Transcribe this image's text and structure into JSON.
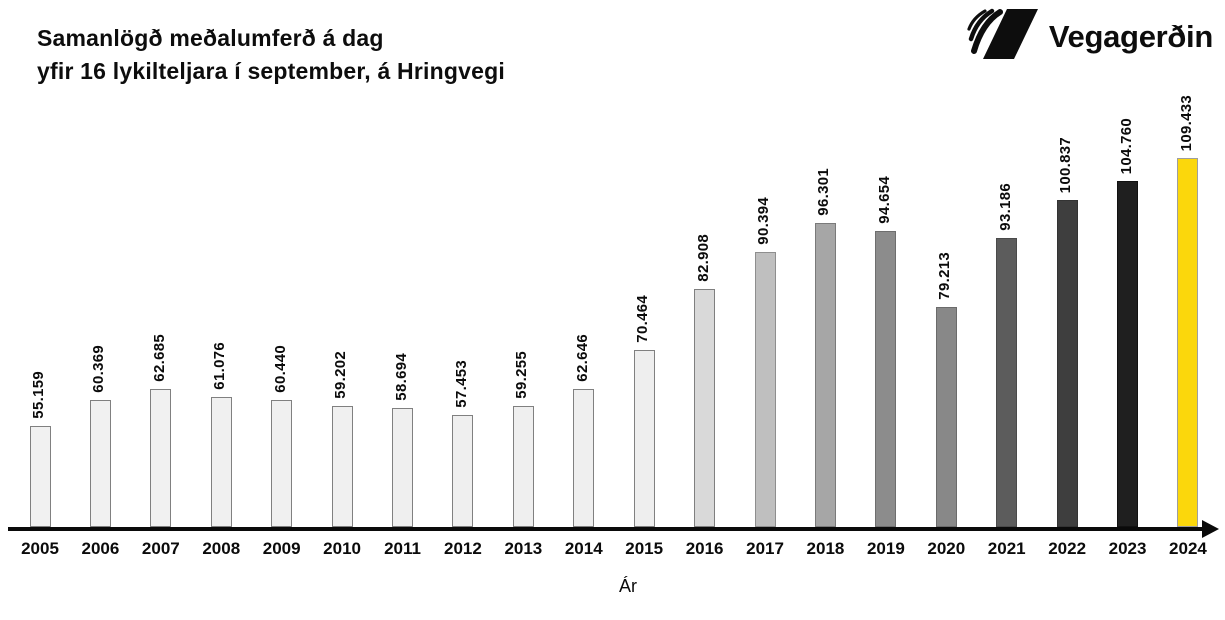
{
  "title": {
    "line1": "Samanlögð meðalumferð á dag",
    "line2": "yfir 16 lykilteljara í september, á Hringvegi"
  },
  "logo": {
    "wordmark": "Vegagerðin",
    "icon": "vegagerdin-logo-icon",
    "color": "#0d0d0d"
  },
  "xaxis_title": "Ár",
  "chart_data": {
    "type": "bar",
    "title": "Samanlögð meðalumferð á dag yfir 16 lykilteljara í september, á Hringvegi",
    "xlabel": "Ár",
    "ylabel": "",
    "ylim": [
      34700,
      110000
    ],
    "y_axis_visible": false,
    "grid": false,
    "legend": false,
    "categories": [
      "2005",
      "2006",
      "2007",
      "2008",
      "2009",
      "2010",
      "2011",
      "2012",
      "2013",
      "2014",
      "2015",
      "2016",
      "2017",
      "2018",
      "2019",
      "2020",
      "2021",
      "2022",
      "2023",
      "2024"
    ],
    "values": [
      55159,
      60369,
      62685,
      61076,
      60440,
      59202,
      58694,
      57453,
      59255,
      62646,
      70464,
      82908,
      90394,
      96301,
      94654,
      79213,
      93186,
      100837,
      104760,
      109433
    ],
    "value_labels": [
      "55.159",
      "60.369",
      "62.685",
      "61.076",
      "60.440",
      "59.202",
      "58.694",
      "57.453",
      "59.255",
      "62.646",
      "70.464",
      "82.908",
      "90.394",
      "96.301",
      "94.654",
      "79.213",
      "93.186",
      "100.837",
      "104.760",
      "109.433"
    ],
    "bar_fills": [
      "#F1F1F1",
      "#F1F1F1",
      "#F1F1F1",
      "#F0F0F0",
      "#F0F0F0",
      "#F0F0F0",
      "#EFEFEF",
      "#EFEFEF",
      "#EFEFEF",
      "#EFEFEF",
      "#EEEEEE",
      "#D9D9D9",
      "#BFBFBF",
      "#A6A6A6",
      "#8C8C8C",
      "#888888",
      "#5C5C5C",
      "#3E3E3E",
      "#1F1F1F",
      "#FBD70C"
    ],
    "bar_strokes": [
      "#808080",
      "#808080",
      "#808080",
      "#808080",
      "#808080",
      "#808080",
      "#808080",
      "#808080",
      "#808080",
      "#808080",
      "#808080",
      "#7F7F7F",
      "#8E8E8E",
      "#7A7A7A",
      "#6E6E6E",
      "#6B6B6B",
      "#4A4A4A",
      "#333333",
      "#111111",
      "#9E9E9E"
    ],
    "highlight": {
      "category": "2024",
      "color": "#FBD70C"
    },
    "colors": {
      "accent_yellow": "#FBD70C",
      "axis": "#0A0A0A",
      "text": "#0B0B0B"
    }
  }
}
